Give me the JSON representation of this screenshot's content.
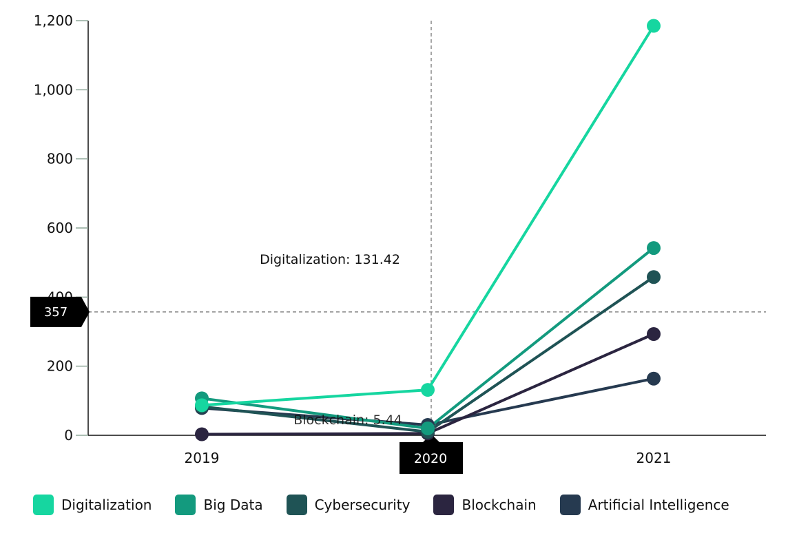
{
  "chart_data": {
    "type": "line",
    "categories": [
      "2019",
      "2020",
      "2021"
    ],
    "series": [
      {
        "name": "Digitalization",
        "color": "#16d6a0",
        "values": [
          87,
          131.42,
          1185
        ]
      },
      {
        "name": "Big Data",
        "color": "#139a7e",
        "values": [
          107,
          20,
          542
        ]
      },
      {
        "name": "Cybersecurity",
        "color": "#1f5355",
        "values": [
          83,
          10,
          458
        ]
      },
      {
        "name": "Blockchain",
        "color": "#2b2540",
        "values": [
          3,
          5.44,
          293
        ]
      },
      {
        "name": "Artificial Intelligence",
        "color": "#263a50",
        "values": [
          79,
          30,
          164
        ]
      }
    ],
    "ylim": [
      0,
      1200
    ],
    "yticks": [
      0,
      200,
      400,
      600,
      800,
      1000,
      1200
    ],
    "ytick_labels": [
      "0",
      "200",
      "400",
      "600",
      "800",
      "1,000",
      "1,200"
    ],
    "grid": false,
    "legend_position": "bottom",
    "crosshair": {
      "x_label": "2020",
      "y_label": "357",
      "y_value": 357
    },
    "tooltip": {
      "text": "Digitalization: 131.42"
    },
    "faded_tooltip": {
      "text": "Blockchain: 5.44"
    }
  }
}
